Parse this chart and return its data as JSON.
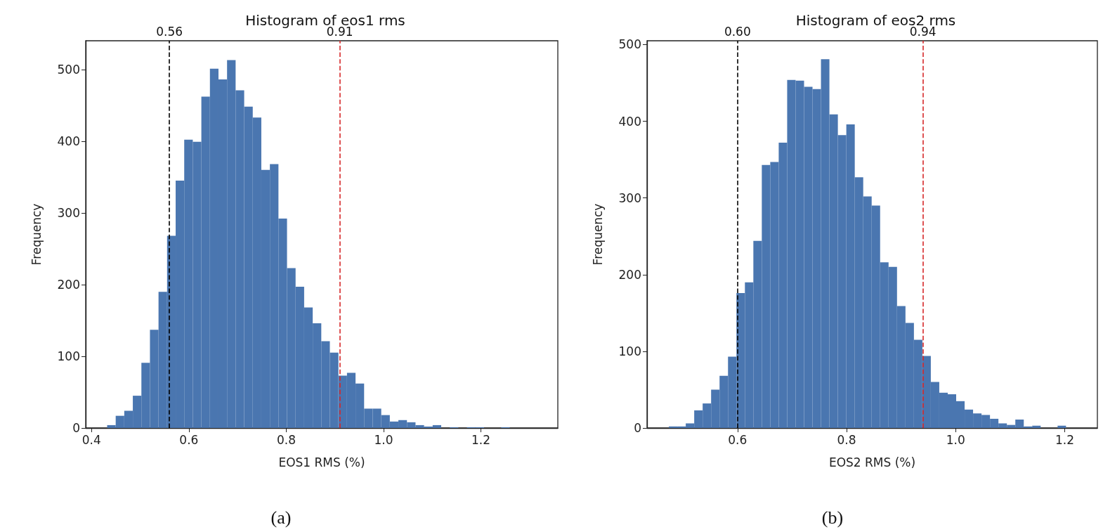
{
  "chart_data": [
    {
      "type": "histogram",
      "title": "Histogram of eos1 rms",
      "xlabel": "EOS1 RMS (%)",
      "ylabel": "Frequency",
      "color": "#4a76b0",
      "grid": false,
      "bins": [
        0.432,
        0.4496,
        0.4672,
        0.4848,
        0.5024,
        0.52,
        0.5376,
        0.5552,
        0.5728,
        0.5904,
        0.608,
        0.6256,
        0.6432,
        0.6608,
        0.6784,
        0.696,
        0.7136,
        0.7312,
        0.7488,
        0.7664,
        0.784,
        0.8016,
        0.8192,
        0.8368,
        0.8544,
        0.872,
        0.8896,
        0.9072,
        0.9248,
        0.9424,
        0.96,
        0.9776,
        0.9952,
        1.0128,
        1.0304,
        1.048,
        1.0656,
        1.0832,
        1.1008,
        1.1184,
        1.136,
        1.1536,
        1.1712,
        1.1888,
        1.2064,
        1.224,
        1.2416,
        1.2592,
        1.2768,
        1.2944,
        1.312
      ],
      "values": [
        4,
        17,
        24,
        45,
        91,
        137,
        190,
        268,
        345,
        402,
        399,
        462,
        501,
        486,
        513,
        471,
        448,
        433,
        360,
        368,
        292,
        223,
        197,
        168,
        146,
        121,
        105,
        73,
        77,
        62,
        27,
        27,
        18,
        9,
        11,
        8,
        4,
        2,
        4,
        0,
        1,
        0,
        1,
        1,
        0,
        0,
        1,
        0,
        0,
        0
      ],
      "xlim": [
        0.388,
        1.358
      ],
      "xticks": [
        0.4,
        0.6,
        0.8,
        {
          "value": 1.0,
          "label": "1.0"
        },
        1.2
      ],
      "ylim": [
        0,
        540
      ],
      "yticks": [
        0,
        100,
        200,
        300,
        400,
        500
      ],
      "ref_lines": [
        {
          "axis": "x",
          "value": 0.56,
          "label": "0.56",
          "color": "#000000",
          "line_style": "dashed"
        },
        {
          "axis": "x",
          "value": 0.91,
          "label": "0.91",
          "color": "#d62728",
          "line_style": "dashed"
        }
      ],
      "annotations": [
        "(a)"
      ]
    },
    {
      "type": "histogram",
      "title": "Histogram of eos2 rms",
      "xlabel": "EOS2 RMS (%)",
      "ylabel": "Frequency",
      "color": "#4a76b0",
      "grid": false,
      "bins": [
        0.474,
        0.4895,
        0.505,
        0.5205,
        0.536,
        0.5515,
        0.567,
        0.5825,
        0.598,
        0.6135,
        0.629,
        0.6445,
        0.66,
        0.6755,
        0.691,
        0.7065,
        0.722,
        0.7375,
        0.753,
        0.7685,
        0.784,
        0.7995,
        0.815,
        0.8305,
        0.846,
        0.8615,
        0.877,
        0.8925,
        0.908,
        0.9235,
        0.939,
        0.9545,
        0.97,
        0.9855,
        1.001,
        1.0165,
        1.032,
        1.0475,
        1.063,
        1.0785,
        1.094,
        1.1095,
        1.125,
        1.1405,
        1.156,
        1.1715,
        1.187,
        1.2025
      ],
      "values": [
        2,
        2,
        6,
        23,
        32,
        50,
        68,
        93,
        176,
        190,
        244,
        343,
        347,
        372,
        454,
        453,
        445,
        442,
        481,
        409,
        382,
        396,
        327,
        302,
        290,
        216,
        210,
        159,
        137,
        115,
        94,
        60,
        46,
        44,
        35,
        24,
        19,
        17,
        12,
        6,
        4,
        11,
        2,
        3,
        0,
        0,
        3
      ],
      "xlim": [
        0.434,
        1.26
      ],
      "xticks": [
        0.6,
        0.8,
        {
          "value": 1.0,
          "label": "1.0"
        },
        1.2
      ],
      "ylim": [
        0,
        505
      ],
      "yticks": [
        0,
        100,
        200,
        300,
        400,
        500
      ],
      "ref_lines": [
        {
          "axis": "x",
          "value": 0.6,
          "label": "0.60",
          "color": "#000000",
          "line_style": "dashed"
        },
        {
          "axis": "x",
          "value": 0.94,
          "label": "0.94",
          "color": "#d62728",
          "line_style": "dashed"
        }
      ],
      "annotations": [
        "(b)"
      ]
    }
  ]
}
